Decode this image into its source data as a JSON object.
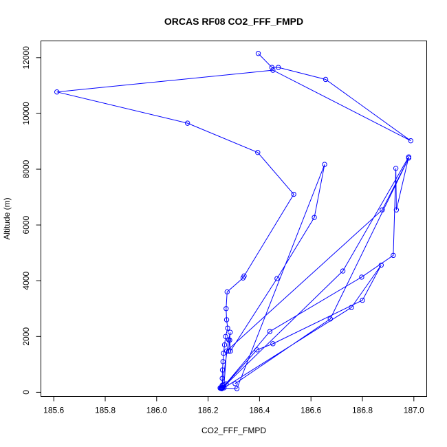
{
  "chart_data": {
    "type": "line",
    "title": "ORCAS RF08 CO2_FFF_FMPD",
    "xlabel": "CO2_FFF_FMPD",
    "ylabel": "Altitude (m)",
    "xlim": [
      185.55,
      187.05
    ],
    "ylim": [
      -150,
      12600
    ],
    "xticks": [
      "185.6",
      "185.8",
      "186.0",
      "186.2",
      "186.4",
      "186.6",
      "186.8",
      "187.0"
    ],
    "yticks": [
      "0",
      "2000",
      "4000",
      "6000",
      "8000",
      "10000",
      "12000"
    ],
    "xtick_values": [
      185.6,
      185.8,
      186.0,
      186.2,
      186.4,
      186.6,
      186.8,
      187.0
    ],
    "ytick_values": [
      0,
      2000,
      4000,
      6000,
      8000,
      10000,
      12000
    ],
    "series": [
      {
        "color": "#0000ff",
        "marker": "open-circle",
        "x": [
          186.395,
          186.448,
          186.473,
          186.657,
          186.988,
          186.452,
          185.612,
          186.12,
          186.393,
          186.533,
          186.34,
          186.336,
          186.274,
          186.27,
          186.272,
          186.276,
          186.268,
          186.264,
          186.26,
          186.258,
          186.256,
          186.255,
          186.255,
          186.253,
          186.25,
          186.247,
          186.247,
          186.253,
          186.258,
          186.255,
          186.253,
          186.28,
          186.286,
          186.28,
          186.284,
          186.287,
          186.468,
          186.613,
          186.653,
          186.312,
          186.255,
          186.27,
          186.39,
          186.452,
          186.8,
          186.873,
          186.757,
          186.262,
          186.258,
          186.44,
          186.797,
          186.92,
          186.93,
          186.932,
          186.98,
          186.724,
          186.255,
          186.262,
          186.272,
          186.877,
          186.98,
          186.675,
          186.305
        ],
        "y": [
          12150,
          11650,
          11650,
          11220,
          9020,
          11550,
          10770,
          9650,
          8600,
          7100,
          4170,
          4100,
          3600,
          3000,
          2600,
          2300,
          2000,
          1700,
          1400,
          1100,
          800,
          500,
          250,
          160,
          140,
          150,
          160,
          160,
          250,
          150,
          130,
          1880,
          2150,
          1470,
          1870,
          1480,
          4080,
          6270,
          8170,
          130,
          150,
          300,
          1520,
          1740,
          3300,
          4560,
          3040,
          160,
          180,
          2180,
          4130,
          4910,
          8030,
          6540,
          8440,
          4350,
          150,
          270,
          1480,
          6540,
          8400,
          2630,
          310
        ]
      }
    ]
  }
}
